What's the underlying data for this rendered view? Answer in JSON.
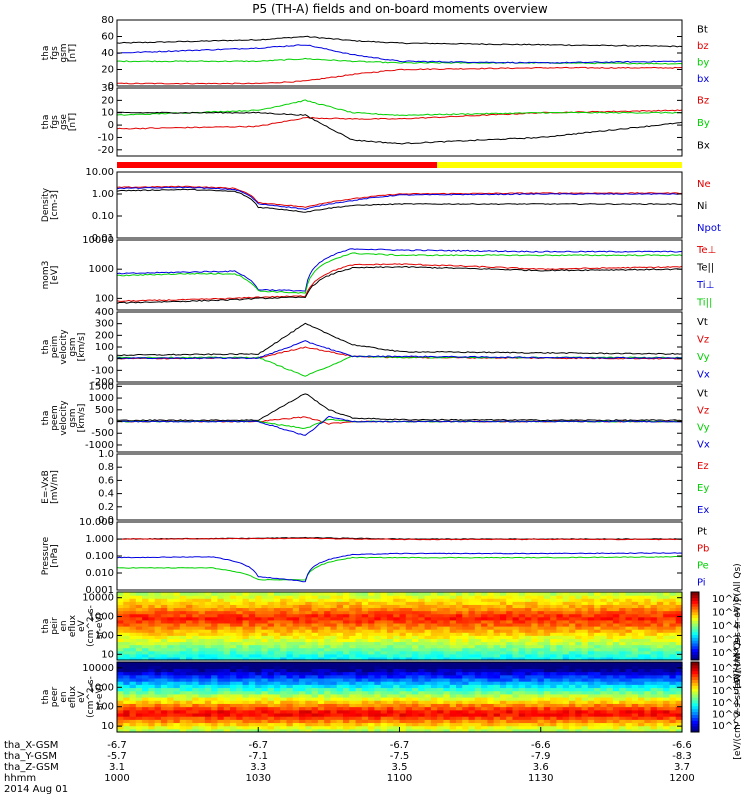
{
  "title": "P5 (TH-A) fields and on-board moments overview",
  "colors": {
    "black": "#000000",
    "red": "#e00000",
    "green": "#00d000",
    "blue": "#0000e0",
    "mode_red": "#ff0000",
    "mode_yellow": "#ffff00"
  },
  "x_axis": {
    "rows": [
      {
        "label": "tha_X-GSM",
        "values": [
          "-6.7",
          "-6.7",
          "-6.7",
          "-6.6",
          "-6.6"
        ]
      },
      {
        "label": "tha_Y-GSM",
        "values": [
          "-5.7",
          "-7.1",
          "-7.5",
          "-7.9",
          "-8.3"
        ]
      },
      {
        "label": "tha_Z-GSM",
        "values": [
          "3.1",
          "3.3",
          "3.5",
          "3.6",
          "3.7"
        ]
      },
      {
        "label": "hhmm",
        "values": [
          "1000",
          "1030",
          "1100",
          "1130",
          "1200"
        ]
      }
    ],
    "date": "2014 Aug 01"
  },
  "chart_data": [
    {
      "type": "line",
      "panel": "fgs_gsm_magnitude",
      "ylabel": [
        "tha",
        "fgs",
        "gsm",
        "[nT]"
      ],
      "ylim": [
        0,
        80
      ],
      "yticks": [
        "0",
        "20",
        "40",
        "60",
        "80"
      ],
      "series": [
        {
          "name": "Bt",
          "color": "black",
          "x": [
            1000,
            1030,
            1040,
            1050,
            1100,
            1130,
            1200
          ],
          "values": [
            52,
            56,
            60,
            55,
            52,
            50,
            48
          ]
        },
        {
          "name": "bz",
          "color": "red",
          "x": [
            1000,
            1030,
            1040,
            1050,
            1100,
            1130,
            1200
          ],
          "values": [
            3,
            3,
            6,
            14,
            20,
            22,
            22
          ]
        },
        {
          "name": "by",
          "color": "green",
          "x": [
            1000,
            1030,
            1040,
            1050,
            1100,
            1130,
            1200
          ],
          "values": [
            30,
            30,
            33,
            30,
            28,
            28,
            27
          ]
        },
        {
          "name": "bx",
          "color": "blue",
          "x": [
            1000,
            1030,
            1040,
            1050,
            1100,
            1130,
            1200
          ],
          "values": [
            40,
            46,
            50,
            38,
            30,
            28,
            30
          ]
        }
      ]
    },
    {
      "type": "line",
      "panel": "fgs_gse",
      "ylabel": [
        "tha",
        "fgs",
        "gse",
        "[nT]"
      ],
      "ylim": [
        -25,
        30
      ],
      "yticks": [
        "-20",
        "-10",
        "0",
        "10",
        "20",
        "30"
      ],
      "series": [
        {
          "name": "Bz",
          "color": "red",
          "x": [
            1000,
            1030,
            1040,
            1050,
            1100,
            1130,
            1200
          ],
          "values": [
            -3,
            -1,
            6,
            5,
            5,
            10,
            12
          ]
        },
        {
          "name": "By",
          "color": "green",
          "x": [
            1000,
            1030,
            1040,
            1050,
            1100,
            1130,
            1200
          ],
          "values": [
            8,
            12,
            20,
            10,
            8,
            10,
            10
          ]
        },
        {
          "name": "Bx",
          "color": "black",
          "x": [
            1000,
            1030,
            1040,
            1050,
            1100,
            1130,
            1200
          ],
          "values": [
            10,
            10,
            8,
            -12,
            -15,
            -10,
            2
          ]
        }
      ]
    },
    {
      "type": "line",
      "panel": "density",
      "ylabel": [
        "Density",
        "[cm-3]"
      ],
      "scale": "log",
      "ylim": [
        0.01,
        10
      ],
      "yticks": [
        "0.01",
        "0.10",
        "1.00",
        "10.00"
      ],
      "series": [
        {
          "name": "Ne",
          "color": "red",
          "x": [
            1000,
            1015,
            1025,
            1030,
            1040,
            1050,
            1100,
            1130,
            1200
          ],
          "values": [
            2.0,
            2.2,
            1.8,
            0.4,
            0.25,
            0.6,
            1.0,
            1.1,
            1.1
          ]
        },
        {
          "name": "Ni",
          "color": "black",
          "x": [
            1000,
            1015,
            1025,
            1030,
            1040,
            1050,
            1100,
            1130,
            1200
          ],
          "values": [
            1.4,
            1.6,
            1.3,
            0.25,
            0.15,
            0.3,
            0.35,
            0.35,
            0.35
          ]
        },
        {
          "name": "Npot",
          "color": "blue",
          "x": [
            1000,
            1015,
            1025,
            1030,
            1040,
            1050,
            1100,
            1130,
            1200
          ],
          "values": [
            1.8,
            2.0,
            1.6,
            0.35,
            0.2,
            0.5,
            0.9,
            1.0,
            1.0
          ]
        }
      ]
    },
    {
      "type": "line",
      "panel": "temperature",
      "ylabel": [
        "mom3",
        "[eV]"
      ],
      "scale": "log",
      "ylim": [
        40,
        10000
      ],
      "yticks": [
        "100",
        "1000",
        "10000"
      ],
      "series": [
        {
          "name": "Te⊥",
          "color": "red",
          "x": [
            1000,
            1015,
            1025,
            1030,
            1040,
            1050,
            1100,
            1130,
            1200
          ],
          "values": [
            80,
            90,
            100,
            110,
            120,
            1400,
            1500,
            1000,
            1200
          ]
        },
        {
          "name": "Te||",
          "color": "black",
          "x": [
            1000,
            1015,
            1025,
            1030,
            1040,
            1050,
            1100,
            1130,
            1200
          ],
          "values": [
            70,
            80,
            90,
            100,
            110,
            1100,
            1200,
            900,
            1000
          ]
        },
        {
          "name": "Ti⊥",
          "color": "blue",
          "x": [
            1000,
            1015,
            1025,
            1030,
            1040,
            1050,
            1100,
            1130,
            1200
          ],
          "values": [
            700,
            800,
            850,
            200,
            180,
            5000,
            4500,
            4000,
            4000
          ]
        },
        {
          "name": "Ti||",
          "color": "green",
          "x": [
            1000,
            1015,
            1025,
            1030,
            1040,
            1050,
            1100,
            1130,
            1200
          ],
          "values": [
            600,
            700,
            700,
            180,
            150,
            3500,
            3000,
            3000,
            3000
          ]
        }
      ]
    },
    {
      "type": "line",
      "panel": "peim_velocity",
      "ylabel": [
        "tha",
        "peim",
        "velocity",
        "gsm",
        "[km/s]"
      ],
      "ylim": [
        -200,
        400
      ],
      "yticks": [
        "-200",
        "-100",
        "0",
        "100",
        "200",
        "300",
        "400"
      ],
      "series": [
        {
          "name": "Vt",
          "color": "black",
          "x": [
            1000,
            1030,
            1040,
            1050,
            1100,
            1130,
            1200
          ],
          "values": [
            30,
            40,
            300,
            120,
            60,
            50,
            40
          ]
        },
        {
          "name": "Vz",
          "color": "red",
          "x": [
            1000,
            1030,
            1040,
            1050,
            1100,
            1130,
            1200
          ],
          "values": [
            0,
            5,
            100,
            20,
            10,
            5,
            0
          ]
        },
        {
          "name": "Vy",
          "color": "green",
          "x": [
            1000,
            1030,
            1040,
            1050,
            1100,
            1130,
            1200
          ],
          "values": [
            10,
            10,
            -150,
            20,
            10,
            10,
            10
          ]
        },
        {
          "name": "Vx",
          "color": "blue",
          "x": [
            1000,
            1030,
            1040,
            1050,
            1100,
            1130,
            1200
          ],
          "values": [
            5,
            5,
            150,
            20,
            20,
            10,
            5
          ]
        }
      ]
    },
    {
      "type": "line",
      "panel": "peem_velocity",
      "ylabel": [
        "tha",
        "peem",
        "velocity",
        "gsm",
        "[km/s]"
      ],
      "ylim": [
        -1300,
        1600
      ],
      "yticks": [
        "-1000",
        "-500",
        "0",
        "500",
        "1000",
        "1500"
      ],
      "series": [
        {
          "name": "Vt",
          "color": "black",
          "x": [
            1000,
            1030,
            1040,
            1045,
            1050,
            1100,
            1130,
            1200
          ],
          "values": [
            50,
            60,
            1200,
            500,
            150,
            80,
            60,
            50
          ]
        },
        {
          "name": "Vz",
          "color": "red",
          "x": [
            1000,
            1030,
            1040,
            1045,
            1050,
            1100,
            1130,
            1200
          ],
          "values": [
            0,
            0,
            200,
            -100,
            0,
            0,
            0,
            0
          ]
        },
        {
          "name": "Vy",
          "color": "green",
          "x": [
            1000,
            1030,
            1040,
            1045,
            1050,
            1100,
            1130,
            1200
          ],
          "values": [
            0,
            0,
            -300,
            100,
            0,
            0,
            0,
            0
          ]
        },
        {
          "name": "Vx",
          "color": "blue",
          "x": [
            1000,
            1030,
            1040,
            1045,
            1050,
            1100,
            1130,
            1200
          ],
          "values": [
            0,
            0,
            -600,
            200,
            0,
            0,
            0,
            0
          ]
        }
      ]
    },
    {
      "type": "line",
      "panel": "efield",
      "ylabel": [
        "E=-VxB",
        "[mV/m]"
      ],
      "ylim": [
        0,
        1
      ],
      "yticks": [
        "0.0",
        "0.2",
        "0.4",
        "0.6",
        "0.8",
        "1.0"
      ],
      "series": [
        {
          "name": "Ez",
          "color": "red",
          "x": [],
          "values": []
        },
        {
          "name": "Ey",
          "color": "green",
          "x": [],
          "values": []
        },
        {
          "name": "Ex",
          "color": "blue",
          "x": [],
          "values": []
        }
      ]
    },
    {
      "type": "line",
      "panel": "pressure",
      "ylabel": [
        "Pressure",
        "[nPa]"
      ],
      "scale": "log",
      "ylim": [
        0.001,
        10
      ],
      "yticks": [
        "0.001",
        "0.010",
        "0.100",
        "1.000",
        "10.000"
      ],
      "series": [
        {
          "name": "Pt",
          "color": "black",
          "x": [
            1000,
            1030,
            1040,
            1050,
            1100,
            1130,
            1200
          ],
          "values": [
            1.0,
            1.1,
            1.2,
            1.1,
            1.0,
            1.0,
            1.0
          ]
        },
        {
          "name": "Pb",
          "color": "red",
          "x": [
            1000,
            1030,
            1040,
            1050,
            1100,
            1130,
            1200
          ],
          "values": [
            1.0,
            1.05,
            1.1,
            1.0,
            0.95,
            0.95,
            0.95
          ]
        },
        {
          "name": "Pe",
          "color": "green",
          "x": [
            1000,
            1020,
            1030,
            1040,
            1050,
            1100,
            1130,
            1200
          ],
          "values": [
            0.02,
            0.02,
            0.004,
            0.004,
            0.08,
            0.08,
            0.08,
            0.09
          ]
        },
        {
          "name": "Pi",
          "color": "blue",
          "x": [
            1000,
            1020,
            1030,
            1040,
            1050,
            1100,
            1130,
            1200
          ],
          "values": [
            0.08,
            0.09,
            0.006,
            0.003,
            0.12,
            0.14,
            0.14,
            0.15
          ]
        }
      ]
    },
    {
      "type": "heatmap",
      "panel": "peir_en_eflux",
      "ylabel": [
        "tha",
        "peir",
        "en",
        "eflux",
        "eV",
        "(cm^2-s-",
        "sr-eV)"
      ],
      "scale": "log",
      "ylim": [
        5,
        20000
      ],
      "yticks": [
        "10",
        "100",
        "1000",
        "10000"
      ],
      "colorbar": {
        "label": "[eV/(cm^2-s-sr-eV)] (All Qs)",
        "ticks": [
          "10^2",
          "10^3",
          "10^4",
          "10^5",
          "10^6"
        ]
      }
    },
    {
      "type": "heatmap",
      "panel": "peer_en_eflux",
      "ylabel": [
        "tha",
        "peer",
        "en",
        "eflux",
        "eV",
        "(cm^2-s-",
        "sr-eV)"
      ],
      "scale": "log",
      "ylim": [
        5,
        20000
      ],
      "yticks": [
        "10",
        "100",
        "1000",
        "10000"
      ],
      "colorbar": {
        "label": "[eV/(cm^2-s-sr-eV)] (All Qs)",
        "ticks": [
          "10^2",
          "10^3",
          "10^4",
          "10^5",
          "10^6",
          "10^7"
        ]
      }
    }
  ]
}
